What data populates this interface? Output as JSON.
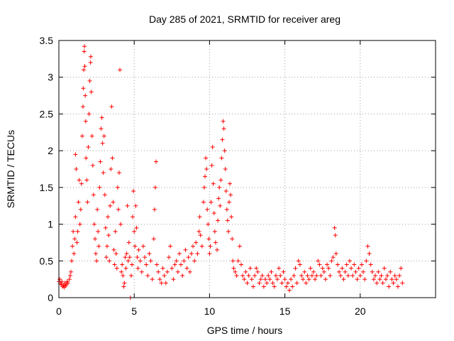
{
  "chart_data": {
    "type": "scatter",
    "title": "Day 285 of 2021, SRMTID for receiver areg",
    "xlabel": "GPS time / hours",
    "ylabel": "SRMTID / TECUs",
    "xlim": [
      0,
      25
    ],
    "ylim": [
      0,
      3.5
    ],
    "xticks": [
      0,
      5,
      10,
      15,
      20
    ],
    "xtick_labels": [
      "0",
      "5",
      "10",
      "15",
      "20"
    ],
    "yticks": [
      0,
      0.5,
      1,
      1.5,
      2,
      2.5,
      3,
      3.5
    ],
    "ytick_labels": [
      "0",
      "0.5",
      "1",
      "1.5",
      "2",
      "2.5",
      "3",
      "3.5"
    ],
    "grid": true,
    "marker": "plus",
    "color": "#ff0000",
    "series": [
      {
        "name": "SRMTID",
        "points": [
          [
            0.0,
            0.22
          ],
          [
            0.05,
            0.25
          ],
          [
            0.1,
            0.2
          ],
          [
            0.15,
            0.18
          ],
          [
            0.2,
            0.22
          ],
          [
            0.25,
            0.15
          ],
          [
            0.3,
            0.17
          ],
          [
            0.35,
            0.14
          ],
          [
            0.4,
            0.2
          ],
          [
            0.45,
            0.16
          ],
          [
            0.5,
            0.18
          ],
          [
            0.55,
            0.22
          ],
          [
            0.6,
            0.2
          ],
          [
            0.7,
            0.25
          ],
          [
            0.75,
            0.3
          ],
          [
            0.8,
            0.35
          ],
          [
            0.85,
            0.5
          ],
          [
            0.9,
            0.7
          ],
          [
            0.95,
            0.9
          ],
          [
            1.0,
            0.6
          ],
          [
            1.05,
            0.8
          ],
          [
            1.1,
            1.1
          ],
          [
            1.1,
            1.95
          ],
          [
            1.15,
            1.75
          ],
          [
            1.2,
            0.75
          ],
          [
            1.25,
            0.9
          ],
          [
            1.3,
            1.3
          ],
          [
            1.35,
            1.6
          ],
          [
            1.4,
            1.0
          ],
          [
            1.45,
            1.2
          ],
          [
            1.5,
            1.55
          ],
          [
            1.55,
            2.2
          ],
          [
            1.6,
            2.6
          ],
          [
            1.62,
            2.85
          ],
          [
            1.65,
            3.1
          ],
          [
            1.68,
            3.35
          ],
          [
            1.7,
            3.42
          ],
          [
            1.72,
            3.15
          ],
          [
            1.75,
            2.75
          ],
          [
            1.78,
            2.4
          ],
          [
            1.8,
            1.9
          ],
          [
            1.85,
            1.6
          ],
          [
            1.9,
            1.3
          ],
          [
            1.95,
            2.05
          ],
          [
            2.0,
            2.5
          ],
          [
            2.05,
            2.95
          ],
          [
            2.1,
            3.2
          ],
          [
            2.12,
            3.28
          ],
          [
            2.15,
            2.8
          ],
          [
            2.2,
            2.2
          ],
          [
            2.25,
            1.8
          ],
          [
            2.3,
            1.4
          ],
          [
            2.35,
            1.0
          ],
          [
            2.4,
            0.8
          ],
          [
            2.45,
            0.6
          ],
          [
            2.5,
            0.5
          ],
          [
            2.55,
            1.2
          ],
          [
            2.6,
            0.9
          ],
          [
            2.65,
            0.7
          ],
          [
            2.7,
            1.5
          ],
          [
            2.75,
            1.85
          ],
          [
            2.8,
            2.3
          ],
          [
            2.85,
            2.45
          ],
          [
            2.9,
            2.1
          ],
          [
            2.95,
            1.7
          ],
          [
            3.0,
            2.2
          ],
          [
            3.05,
            1.4
          ],
          [
            3.1,
            0.95
          ],
          [
            3.15,
            0.55
          ],
          [
            3.2,
            0.7
          ],
          [
            3.25,
            1.1
          ],
          [
            3.3,
            0.85
          ],
          [
            3.35,
            0.5
          ],
          [
            3.4,
            1.25
          ],
          [
            3.45,
            1.75
          ],
          [
            3.5,
            2.6
          ],
          [
            3.55,
            1.9
          ],
          [
            3.6,
            1.3
          ],
          [
            3.65,
            0.65
          ],
          [
            3.7,
            0.45
          ],
          [
            3.75,
            0.9
          ],
          [
            3.8,
            0.6
          ],
          [
            3.85,
            0.4
          ],
          [
            3.9,
            1.5
          ],
          [
            3.95,
            1.2
          ],
          [
            4.0,
            1.7
          ],
          [
            4.05,
            3.1
          ],
          [
            4.1,
            1.0
          ],
          [
            4.15,
            0.35
          ],
          [
            4.2,
            0.45
          ],
          [
            4.25,
            0.3
          ],
          [
            4.3,
            0.15
          ],
          [
            4.35,
            0.2
          ],
          [
            4.4,
            0.55
          ],
          [
            4.45,
            0.4
          ],
          [
            4.5,
            0.6
          ],
          [
            4.55,
            1.25
          ],
          [
            4.6,
            0.5
          ],
          [
            4.65,
            0.75
          ],
          [
            4.7,
            0.55
          ],
          [
            4.75,
            0.0
          ],
          [
            4.8,
            0.3
          ],
          [
            4.85,
            0.45
          ],
          [
            4.9,
            1.1
          ],
          [
            4.95,
            1.45
          ],
          [
            5.0,
            0.9
          ],
          [
            5.05,
            0.7
          ],
          [
            5.1,
            1.25
          ],
          [
            5.15,
            0.95
          ],
          [
            5.2,
            0.55
          ],
          [
            5.25,
            0.4
          ],
          [
            5.3,
            0.65
          ],
          [
            5.4,
            0.5
          ],
          [
            5.5,
            0.35
          ],
          [
            5.6,
            0.7
          ],
          [
            5.7,
            0.55
          ],
          [
            5.8,
            0.45
          ],
          [
            5.9,
            0.3
          ],
          [
            6.0,
            0.6
          ],
          [
            6.1,
            0.5
          ],
          [
            6.2,
            0.25
          ],
          [
            6.3,
            0.8
          ],
          [
            6.35,
            1.2
          ],
          [
            6.4,
            1.5
          ],
          [
            6.45,
            1.85
          ],
          [
            6.5,
            0.45
          ],
          [
            6.6,
            0.35
          ],
          [
            6.7,
            0.25
          ],
          [
            6.8,
            0.2
          ],
          [
            6.9,
            0.4
          ],
          [
            7.0,
            0.3
          ],
          [
            7.1,
            0.2
          ],
          [
            7.2,
            0.35
          ],
          [
            7.3,
            0.55
          ],
          [
            7.4,
            0.7
          ],
          [
            7.5,
            0.4
          ],
          [
            7.6,
            0.25
          ],
          [
            7.7,
            0.45
          ],
          [
            7.8,
            0.5
          ],
          [
            7.9,
            0.35
          ],
          [
            8.0,
            0.6
          ],
          [
            8.1,
            0.45
          ],
          [
            8.2,
            0.3
          ],
          [
            8.3,
            0.5
          ],
          [
            8.4,
            0.65
          ],
          [
            8.5,
            0.4
          ],
          [
            8.6,
            0.55
          ],
          [
            8.7,
            0.35
          ],
          [
            8.8,
            0.6
          ],
          [
            8.9,
            0.7
          ],
          [
            9.0,
            0.5
          ],
          [
            9.1,
            0.75
          ],
          [
            9.2,
            0.6
          ],
          [
            9.3,
            0.9
          ],
          [
            9.35,
            1.1
          ],
          [
            9.4,
            0.85
          ],
          [
            9.5,
            0.7
          ],
          [
            9.6,
            1.3
          ],
          [
            9.65,
            1.5
          ],
          [
            9.7,
            1.65
          ],
          [
            9.75,
            1.9
          ],
          [
            9.8,
            1.75
          ],
          [
            9.85,
            1.2
          ],
          [
            9.9,
            1.0
          ],
          [
            9.95,
            0.8
          ],
          [
            10.0,
            0.6
          ],
          [
            10.05,
            0.7
          ],
          [
            10.1,
            1.3
          ],
          [
            10.15,
            1.8
          ],
          [
            10.2,
            2.05
          ],
          [
            10.25,
            1.55
          ],
          [
            10.3,
            1.15
          ],
          [
            10.35,
            0.9
          ],
          [
            10.4,
            0.75
          ],
          [
            10.5,
            0.65
          ],
          [
            10.55,
            1.05
          ],
          [
            10.6,
            1.35
          ],
          [
            10.65,
            1.5
          ],
          [
            10.7,
            1.25
          ],
          [
            10.75,
            1.6
          ],
          [
            10.8,
            1.9
          ],
          [
            10.85,
            2.15
          ],
          [
            10.9,
            2.4
          ],
          [
            10.95,
            2.3
          ],
          [
            11.0,
            2.0
          ],
          [
            11.05,
            1.75
          ],
          [
            11.1,
            1.45
          ],
          [
            11.15,
            1.2
          ],
          [
            11.2,
            1.05
          ],
          [
            11.25,
            0.9
          ],
          [
            11.3,
            1.3
          ],
          [
            11.35,
            1.55
          ],
          [
            11.4,
            1.4
          ],
          [
            11.45,
            1.1
          ],
          [
            11.5,
            0.8
          ],
          [
            11.55,
            0.5
          ],
          [
            11.6,
            0.4
          ],
          [
            11.7,
            0.35
          ],
          [
            11.8,
            0.3
          ],
          [
            11.9,
            0.5
          ],
          [
            12.0,
            0.7
          ],
          [
            12.1,
            0.45
          ],
          [
            12.2,
            0.3
          ],
          [
            12.3,
            0.25
          ],
          [
            12.4,
            0.35
          ],
          [
            12.5,
            0.2
          ],
          [
            12.6,
            0.3
          ],
          [
            12.7,
            0.4
          ],
          [
            12.8,
            0.25
          ],
          [
            12.9,
            0.15
          ],
          [
            13.0,
            0.3
          ],
          [
            13.1,
            0.4
          ],
          [
            13.2,
            0.35
          ],
          [
            13.3,
            0.2
          ],
          [
            13.4,
            0.25
          ],
          [
            13.5,
            0.3
          ],
          [
            13.6,
            0.15
          ],
          [
            13.7,
            0.25
          ],
          [
            13.8,
            0.2
          ],
          [
            13.9,
            0.3
          ],
          [
            14.0,
            0.25
          ],
          [
            14.1,
            0.35
          ],
          [
            14.2,
            0.2
          ],
          [
            14.3,
            0.15
          ],
          [
            14.4,
            0.3
          ],
          [
            14.5,
            0.25
          ],
          [
            14.6,
            0.4
          ],
          [
            14.7,
            0.3
          ],
          [
            14.8,
            0.2
          ],
          [
            14.9,
            0.35
          ],
          [
            15.0,
            0.25
          ],
          [
            15.1,
            0.15
          ],
          [
            15.2,
            0.2
          ],
          [
            15.3,
            0.1
          ],
          [
            15.4,
            0.25
          ],
          [
            15.5,
            0.15
          ],
          [
            15.6,
            0.3
          ],
          [
            15.7,
            0.4
          ],
          [
            15.8,
            0.2
          ],
          [
            15.9,
            0.5
          ],
          [
            16.0,
            0.45
          ],
          [
            16.1,
            0.3
          ],
          [
            16.2,
            0.25
          ],
          [
            16.3,
            0.35
          ],
          [
            16.4,
            0.2
          ],
          [
            16.5,
            0.3
          ],
          [
            16.6,
            0.25
          ],
          [
            16.7,
            0.4
          ],
          [
            16.8,
            0.3
          ],
          [
            16.9,
            0.35
          ],
          [
            17.0,
            0.25
          ],
          [
            17.1,
            0.3
          ],
          [
            17.2,
            0.5
          ],
          [
            17.3,
            0.45
          ],
          [
            17.4,
            0.3
          ],
          [
            17.5,
            0.4
          ],
          [
            17.6,
            0.35
          ],
          [
            17.7,
            0.25
          ],
          [
            17.8,
            0.45
          ],
          [
            17.9,
            0.4
          ],
          [
            18.0,
            0.3
          ],
          [
            18.1,
            0.5
          ],
          [
            18.2,
            0.55
          ],
          [
            18.3,
            0.95
          ],
          [
            18.35,
            0.85
          ],
          [
            18.4,
            0.6
          ],
          [
            18.5,
            0.45
          ],
          [
            18.6,
            0.35
          ],
          [
            18.7,
            0.3
          ],
          [
            18.8,
            0.4
          ],
          [
            18.9,
            0.25
          ],
          [
            19.0,
            0.35
          ],
          [
            19.1,
            0.45
          ],
          [
            19.2,
            0.3
          ],
          [
            19.3,
            0.5
          ],
          [
            19.4,
            0.4
          ],
          [
            19.5,
            0.3
          ],
          [
            19.6,
            0.45
          ],
          [
            19.7,
            0.35
          ],
          [
            19.8,
            0.25
          ],
          [
            19.9,
            0.4
          ],
          [
            20.0,
            0.3
          ],
          [
            20.1,
            0.45
          ],
          [
            20.2,
            0.35
          ],
          [
            20.3,
            0.25
          ],
          [
            20.4,
            0.5
          ],
          [
            20.5,
            0.7
          ],
          [
            20.6,
            0.6
          ],
          [
            20.7,
            0.45
          ],
          [
            20.8,
            0.35
          ],
          [
            20.9,
            0.25
          ],
          [
            21.0,
            0.3
          ],
          [
            21.1,
            0.2
          ],
          [
            21.2,
            0.35
          ],
          [
            21.3,
            0.25
          ],
          [
            21.4,
            0.3
          ],
          [
            21.5,
            0.2
          ],
          [
            21.6,
            0.4
          ],
          [
            21.7,
            0.25
          ],
          [
            21.8,
            0.3
          ],
          [
            21.9,
            0.15
          ],
          [
            22.0,
            0.35
          ],
          [
            22.1,
            0.25
          ],
          [
            22.2,
            0.2
          ],
          [
            22.3,
            0.3
          ],
          [
            22.4,
            0.25
          ],
          [
            22.5,
            0.15
          ],
          [
            22.6,
            0.3
          ],
          [
            22.7,
            0.4
          ],
          [
            22.8,
            0.2
          ]
        ]
      }
    ]
  }
}
